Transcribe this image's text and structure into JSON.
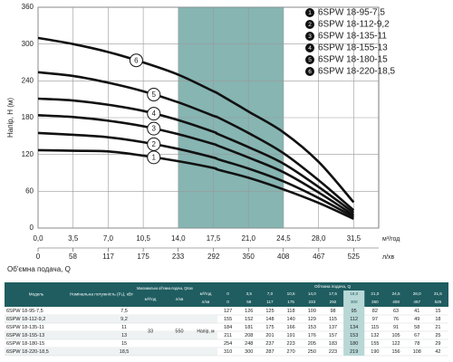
{
  "chart_data": {
    "type": "line",
    "y_label": "Напір, Н (м)",
    "x_label": "Об'ємна подача, Q",
    "x_unit": "м³/год",
    "x2_unit": "л/хв",
    "x": [
      0,
      3.5,
      7,
      10.5,
      14,
      17.5,
      18,
      21,
      24.5,
      28,
      31.5
    ],
    "xlim": [
      0,
      34
    ],
    "xticks": [
      {
        "value": 0,
        "label": "0,0"
      },
      {
        "value": 3.5,
        "label": "3,5"
      },
      {
        "value": 7,
        "label": "7,0"
      },
      {
        "value": 10.5,
        "label": "10,5"
      },
      {
        "value": 14,
        "label": "14,0"
      },
      {
        "value": 17.5,
        "label": "17,5"
      },
      {
        "value": 21,
        "label": "21,0"
      },
      {
        "value": 24.5,
        "label": "24,5"
      },
      {
        "value": 28,
        "label": "28,0"
      },
      {
        "value": 31.5,
        "label": "31,5"
      }
    ],
    "x2lim": [
      0,
      566.7
    ],
    "x2ticks": [
      0,
      58,
      117,
      175,
      233,
      292,
      350,
      408,
      467,
      525
    ],
    "ylim": [
      0,
      360
    ],
    "yticks": [
      0,
      60,
      120,
      180,
      240,
      300,
      360
    ],
    "grid": true,
    "highlight_range": [
      14,
      24.5
    ],
    "highlight_color": "#5e9c98",
    "legend": "upper right",
    "series": [
      {
        "name": "6SPW 18-95-7,5",
        "label": "1",
        "color": "#111111",
        "values": [
          127,
          126,
          125,
          118,
          109,
          98,
          95,
          82,
          63,
          41,
          15
        ]
      },
      {
        "name": "6SPW 18-112-9,2",
        "label": "2",
        "color": "#111111",
        "values": [
          155,
          152,
          148,
          140,
          129,
          115,
          112,
          97,
          76,
          49,
          18
        ]
      },
      {
        "name": "6SPW 18-135-11",
        "label": "3",
        "color": "#111111",
        "values": [
          184,
          181,
          175,
          166,
          153,
          137,
          134,
          115,
          91,
          58,
          21
        ]
      },
      {
        "name": "6SPW 18-155-13",
        "label": "4",
        "color": "#111111",
        "values": [
          211,
          208,
          201,
          191,
          176,
          157,
          153,
          132,
          105,
          67,
          25
        ]
      },
      {
        "name": "6SPW 18-180-15",
        "label": "5",
        "color": "#111111",
        "values": [
          254,
          248,
          237,
          223,
          205,
          183,
          180,
          155,
          122,
          78,
          29
        ]
      },
      {
        "name": "6SPW 18-220-18,5",
        "label": "6",
        "color": "#111111",
        "values": [
          310,
          300,
          287,
          270,
          250,
          223,
          219,
          190,
          156,
          108,
          42
        ]
      }
    ]
  },
  "table": {
    "headers": {
      "model": "Модель",
      "power": "Номінальна потужність (P₂), кВт",
      "qmax": "Максимальна об'ємна подача, Qmax",
      "qmax_m3h": "м³/год",
      "qmax_lmin": "л/хв",
      "q": "Об'ємна подача, Q",
      "q_m3h_unit": "м³/год",
      "q_lmin_unit": "л/хв"
    },
    "q_m3h": [
      "0",
      "3,5",
      "7,0",
      "10,5",
      "14,0",
      "17,5",
      "18,0",
      "21,0",
      "24,5",
      "28,0",
      "31,5"
    ],
    "q_lmin": [
      "0",
      "58",
      "117",
      "175",
      "233",
      "292",
      "300",
      "350",
      "408",
      "467",
      "525"
    ],
    "powers": [
      "7,5",
      "9,2",
      "11",
      "13",
      "15",
      "18,5"
    ],
    "qmax_m3h": 33,
    "qmax_lmin": 550,
    "head_label": "Напір, м",
    "highlight_column": 6
  }
}
